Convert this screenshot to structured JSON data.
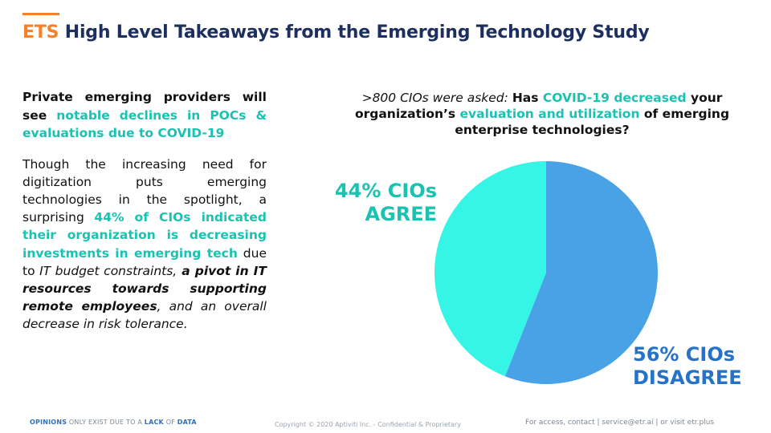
{
  "header": {
    "title_prefix": "ETS",
    "title_rest": " High Level Takeaways from the Emerging Technology Study",
    "accent_color": "#f5822a",
    "title_color": "#1c2f5e"
  },
  "left_panel": {
    "headline": {
      "part1": "Private emerging providers will see ",
      "highlight": "notable declines in POCs & evaluations due to COVID-19"
    },
    "body": {
      "part1": "Though the increasing need for digitization puts emerging technologies in the spotlight, a surprising ",
      "highlight": "44% of CIOs indicated their organization is decreasing investments in emerging tech",
      "part2": " due to ",
      "italic1": "IT budget constraints,",
      "bold_italic": " a pivot in IT resources towards supporting remote employees",
      "italic2": ", and an overall decrease in risk tolerance."
    },
    "highlight_color": "#19c2b1"
  },
  "question": {
    "intro": ">800 CIOs were asked",
    "colon": ": ",
    "part1": "Has ",
    "hl1": "COVID-19 decreased",
    "part2": " your organization’s ",
    "hl2": "evaluation and utilization",
    "part3": " of emerging enterprise technologies?"
  },
  "chart_data": {
    "type": "pie",
    "title": "Has COVID-19 decreased your organization’s evaluation and utilization of emerging enterprise technologies?",
    "categories": [
      "AGREE",
      "DISAGREE"
    ],
    "values": [
      44,
      56
    ],
    "colors": [
      "#34f5e6",
      "#4aa2e6"
    ],
    "labels": [
      {
        "line1": "44% CIOs",
        "line2": "AGREE",
        "color": "#19c2b1"
      },
      {
        "line1": "56% CIOs",
        "line2": "DISAGREE",
        "color": "#2672c8"
      }
    ]
  },
  "footer": {
    "opinions": "OPINIONS",
    "only_exist": " ONLY EXIST DUE TO A ",
    "lack": "LACK",
    "of": " OF ",
    "data": "DATA",
    "copyright": "Copyright © 2020 Aptiviti Inc. - Confidential & Proprietary",
    "contact": "For access, contact | service@etr.ai | or visit etr.plus"
  }
}
